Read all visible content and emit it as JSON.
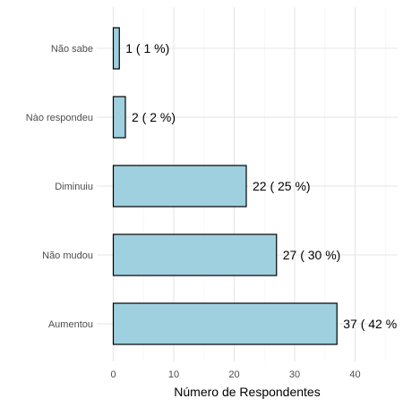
{
  "chart_data": {
    "type": "bar",
    "orientation": "horizontal",
    "categories": [
      "Aumentou",
      "Não mudou",
      "Diminuiu",
      "Nào respondeu",
      "Não sabe"
    ],
    "values": [
      37,
      27,
      22,
      2,
      1
    ],
    "data_labels": [
      "37 ( 42 %",
      "27 ( 30 %)",
      "22 ( 25 %)",
      "2 ( 2 %)",
      "1 ( 1 %)"
    ],
    "title": "",
    "xlabel": "Número de Respondentes",
    "ylabel": "",
    "xlim": [
      0,
      45
    ],
    "xticks": [
      0,
      10,
      20,
      30,
      40
    ],
    "xtick_labels": [
      "0",
      "10",
      "20",
      "30",
      "40"
    ],
    "grid": true,
    "legend": "none",
    "colors": {
      "bar_fill": "#9fd0e0",
      "bar_stroke": "#000000",
      "grid_major": "#e5e5e5",
      "grid_minor": "#f2f2f2",
      "tick_text": "#4d4d4d",
      "label_text": "#000000"
    }
  }
}
